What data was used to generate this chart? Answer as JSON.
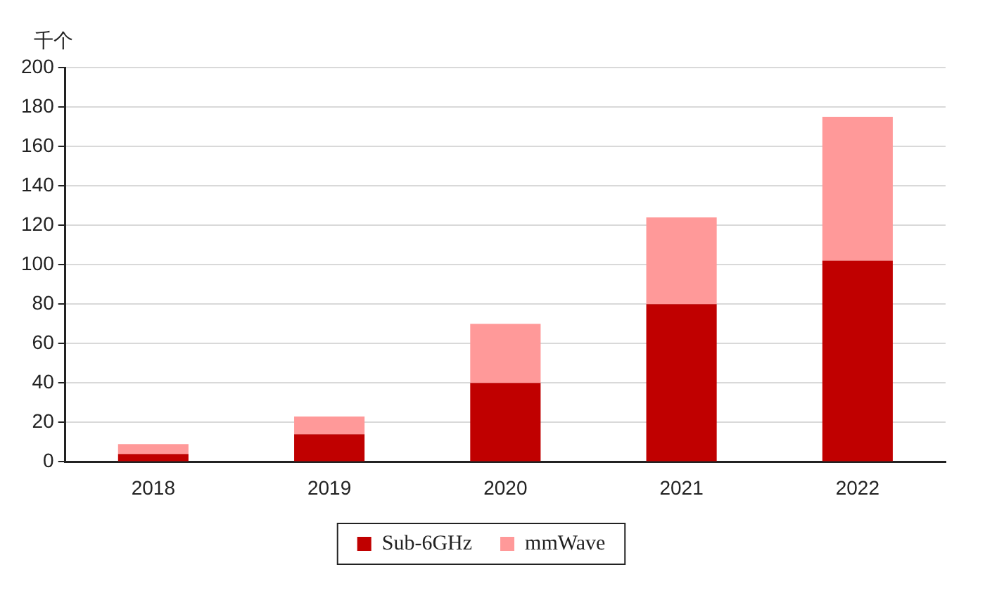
{
  "chart_data": {
    "type": "bar",
    "ylabel": "千个",
    "categories": [
      "2018",
      "2019",
      "2020",
      "2021",
      "2022"
    ],
    "series": [
      {
        "name": "Sub-6GHz",
        "color": "#c00000",
        "values": [
          4,
          14,
          40,
          80,
          102
        ]
      },
      {
        "name": "mmWave",
        "color": "#ff9999",
        "values": [
          5,
          9,
          30,
          44,
          73
        ]
      }
    ],
    "stacked": true,
    "ylim": [
      0,
      200
    ],
    "yticks": [
      0,
      20,
      40,
      60,
      80,
      100,
      120,
      140,
      160,
      180,
      200
    ],
    "grid": "y",
    "legend": "bottom"
  }
}
